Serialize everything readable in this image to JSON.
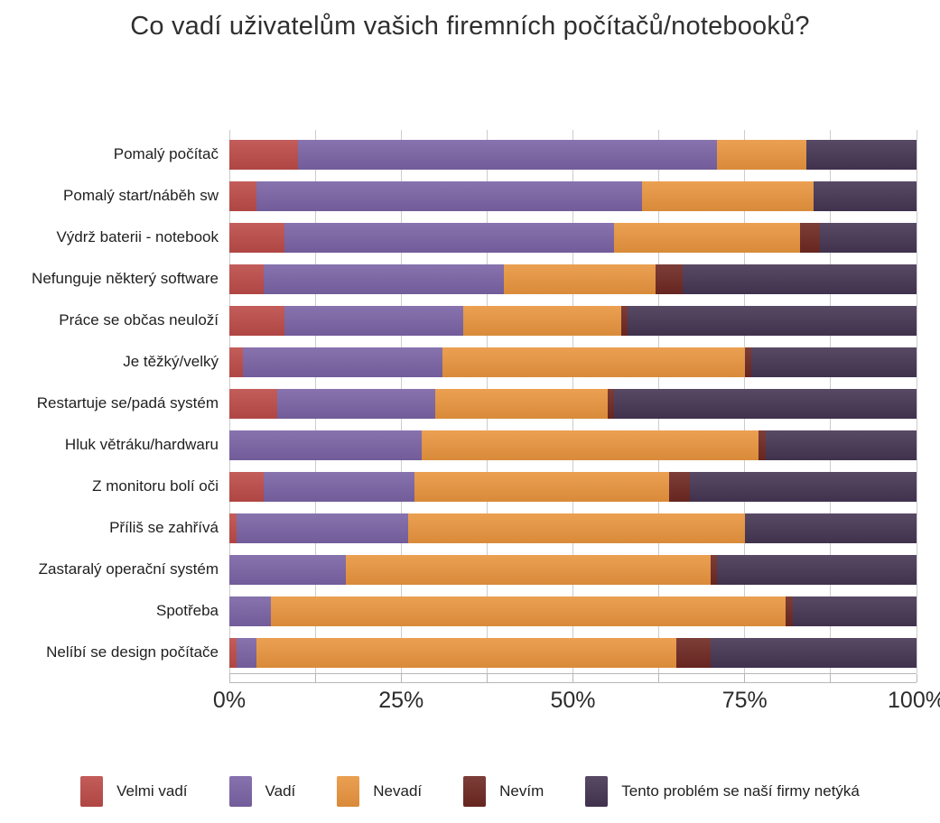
{
  "chart_data": {
    "type": "bar",
    "orientation": "horizontal",
    "stacked": true,
    "title": "Co vadí uživatelům vašich firemních počítačů/notebooků?",
    "unit": "%",
    "xlim": [
      0,
      100
    ],
    "x_tick_labels": [
      "0%",
      "25%",
      "50%",
      "75%",
      "100%"
    ],
    "x_tick_positions": [
      0,
      25,
      50,
      75,
      100
    ],
    "gridline_step": 12.5,
    "grid": true,
    "legend_position": "bottom",
    "gridline_color": "#cccccc",
    "categories": [
      "Pomalý počítač",
      "Pomalý start/náběh sw",
      "Výdrž baterii - notebook",
      "Nefunguje některý software",
      "Práce se občas neuloží",
      "Je těžký/velký",
      "Restartuje se/padá systém",
      "Hluk větráku/hardwaru",
      "Z monitoru bolí oči",
      "Příliš se zahřívá",
      "Zastaralý operační systém",
      "Spotřeba",
      "Nelíbí se design počítače"
    ],
    "series": [
      {
        "name": "Velmi vadí",
        "slug": "velmi-vadi",
        "color": "#bc4b48",
        "values": [
          10,
          4,
          8,
          5,
          8,
          2,
          7,
          0,
          5,
          1,
          0,
          0,
          1
        ]
      },
      {
        "name": "Vadí",
        "slug": "vadi",
        "color": "#7a63a5",
        "values": [
          61,
          56,
          48,
          35,
          26,
          29,
          23,
          28,
          22,
          25,
          17,
          6,
          3
        ]
      },
      {
        "name": "Nevadí",
        "slug": "nevadi",
        "color": "#e9953e",
        "values": [
          13,
          25,
          27,
          22,
          23,
          44,
          25,
          49,
          37,
          49,
          53,
          75,
          61
        ]
      },
      {
        "name": "Nevím",
        "slug": "nevim",
        "color": "#6e2822",
        "values": [
          0,
          0,
          3,
          4,
          1,
          1,
          1,
          1,
          3,
          0,
          1,
          1,
          5
        ]
      },
      {
        "name": "Tento problém se naší firmy netýká",
        "slug": "netyka",
        "color": "#453553",
        "values": [
          16,
          15,
          14,
          34,
          42,
          24,
          44,
          22,
          33,
          25,
          29,
          18,
          30
        ]
      }
    ]
  }
}
